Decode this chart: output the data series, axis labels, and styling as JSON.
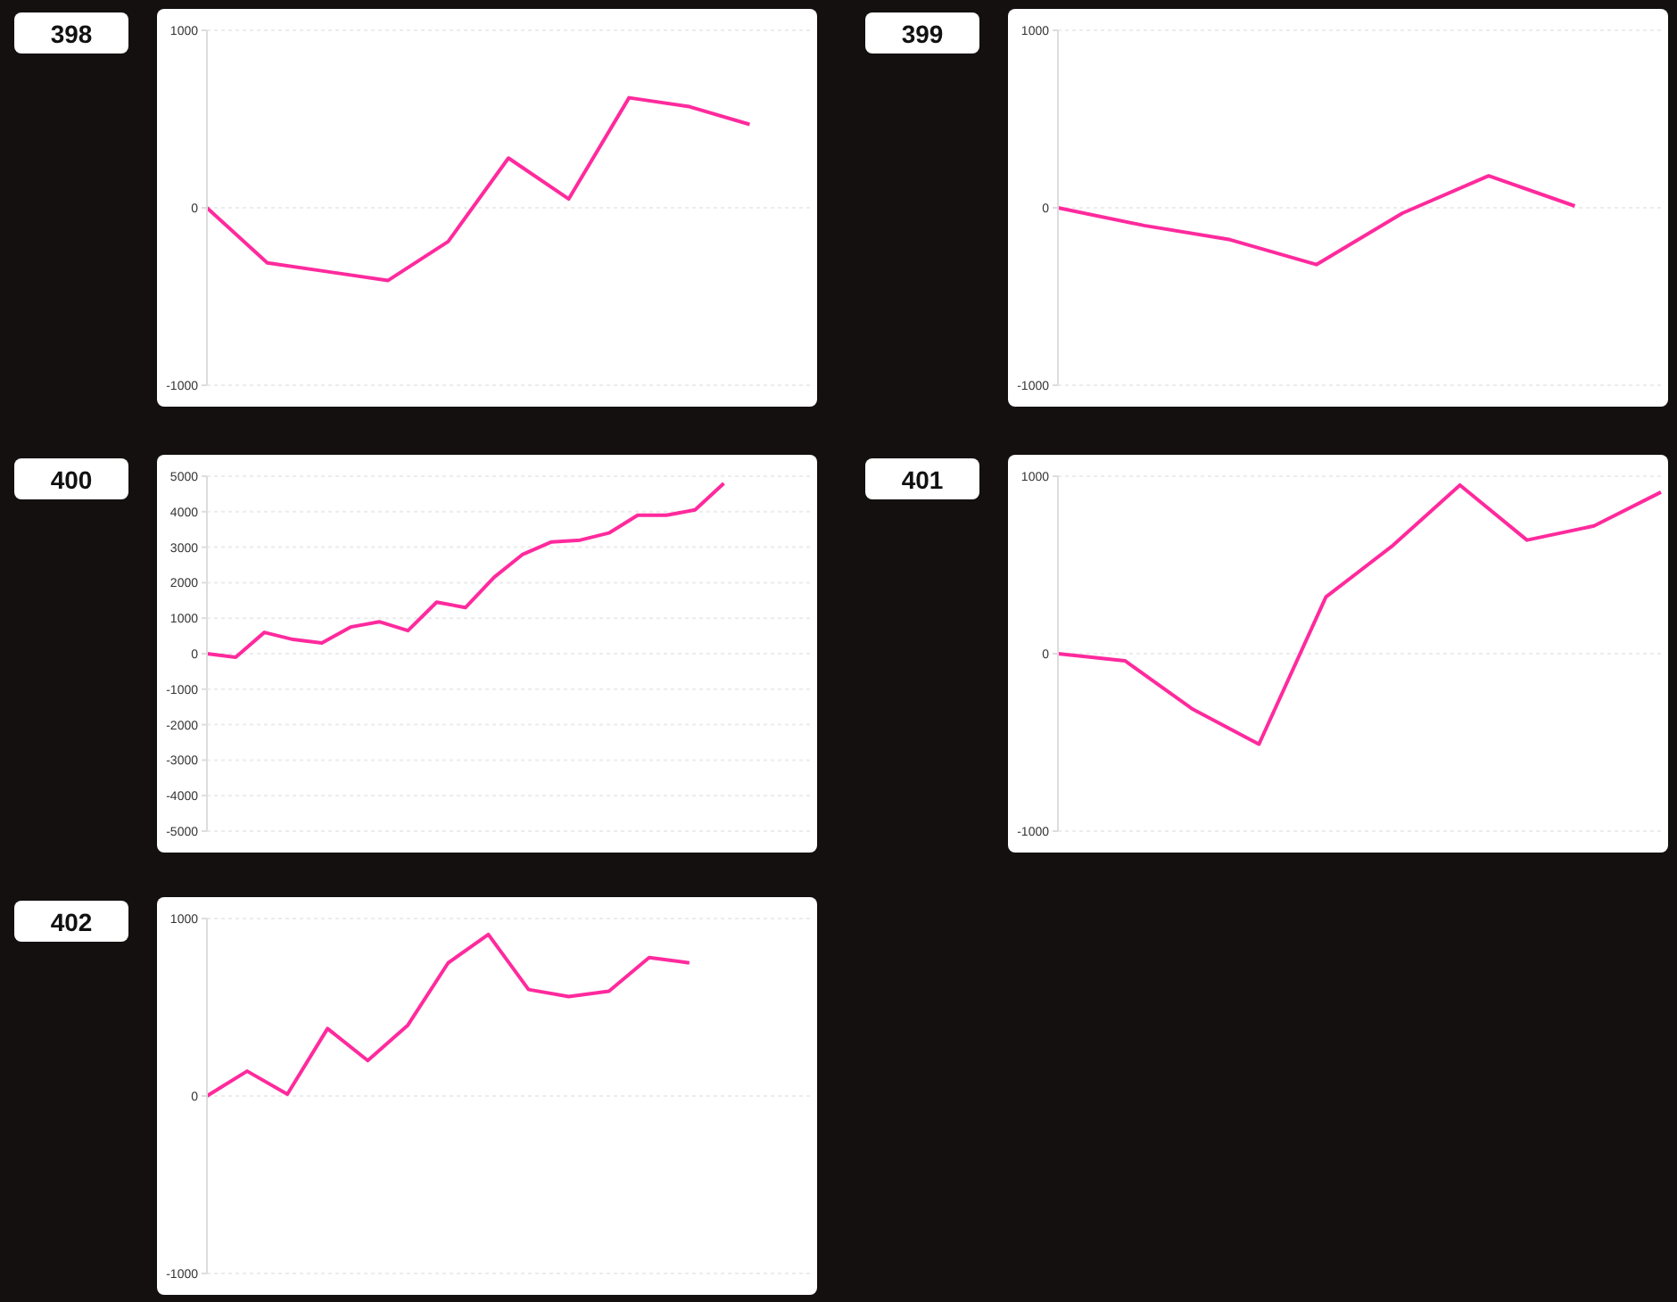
{
  "chart_data": [
    {
      "type": "line",
      "title": "398",
      "categories": [
        null,
        null,
        null,
        null,
        null,
        null,
        null,
        null,
        null,
        null,
        null
      ],
      "series": [
        {
          "color": "#ff2a9d",
          "values": [
            0,
            -310,
            -360,
            -410,
            -190,
            280,
            50,
            620,
            570,
            470,
            null
          ]
        }
      ],
      "ylim": [
        -1000,
        1000
      ],
      "yticks": [
        -1000,
        0,
        1000
      ],
      "tick_labels": "y",
      "grid": "y",
      "legend": false
    },
    {
      "type": "line",
      "title": "399",
      "categories": [
        null,
        null,
        null,
        null,
        null,
        null,
        null,
        null
      ],
      "series": [
        {
          "color": "#ff2a9d",
          "values": [
            0,
            -100,
            -180,
            -320,
            -30,
            180,
            10,
            null
          ]
        }
      ],
      "ylim": [
        -1000,
        1000
      ],
      "yticks": [
        -1000,
        0,
        1000
      ],
      "tick_labels": "y",
      "grid": "y",
      "legend": false
    },
    {
      "type": "line",
      "title": "400",
      "categories": [
        null,
        null,
        null,
        null,
        null,
        null,
        null,
        null,
        null,
        null,
        null,
        null,
        null,
        null,
        null,
        null,
        null,
        null,
        null,
        null,
        null,
        null
      ],
      "series": [
        {
          "color": "#ff2a9d",
          "values": [
            0,
            -100,
            600,
            400,
            300,
            750,
            900,
            650,
            1450,
            1300,
            2150,
            2800,
            3150,
            3200,
            3400,
            3900,
            3900,
            4050,
            4800,
            null,
            null,
            null
          ]
        }
      ],
      "ylim": [
        -5000,
        5000
      ],
      "yticks": [
        -5000,
        -4000,
        -3000,
        -2000,
        -1000,
        0,
        1000,
        2000,
        3000,
        4000,
        5000
      ],
      "tick_labels": "y",
      "grid": "y",
      "legend": false
    },
    {
      "type": "line",
      "title": "401",
      "categories": [
        null,
        null,
        null,
        null,
        null,
        null,
        null,
        null,
        null,
        null
      ],
      "series": [
        {
          "color": "#ff2a9d",
          "values": [
            0,
            -40,
            -310,
            -510,
            320,
            610,
            950,
            640,
            720,
            910
          ]
        }
      ],
      "ylim": [
        -1000,
        1000
      ],
      "yticks": [
        -1000,
        0,
        1000
      ],
      "tick_labels": "y",
      "grid": "y",
      "legend": false
    },
    {
      "type": "line",
      "title": "402",
      "categories": [
        null,
        null,
        null,
        null,
        null,
        null,
        null,
        null,
        null,
        null,
        null,
        null,
        null,
        null,
        null,
        null
      ],
      "series": [
        {
          "color": "#ff2a9d",
          "values": [
            0,
            140,
            10,
            380,
            200,
            400,
            750,
            910,
            600,
            560,
            590,
            780,
            750,
            null,
            null,
            null
          ]
        }
      ],
      "ylim": [
        -1000,
        1000
      ],
      "yticks": [
        -1000,
        0,
        1000
      ],
      "tick_labels": "y",
      "grid": "y",
      "legend": false
    }
  ]
}
